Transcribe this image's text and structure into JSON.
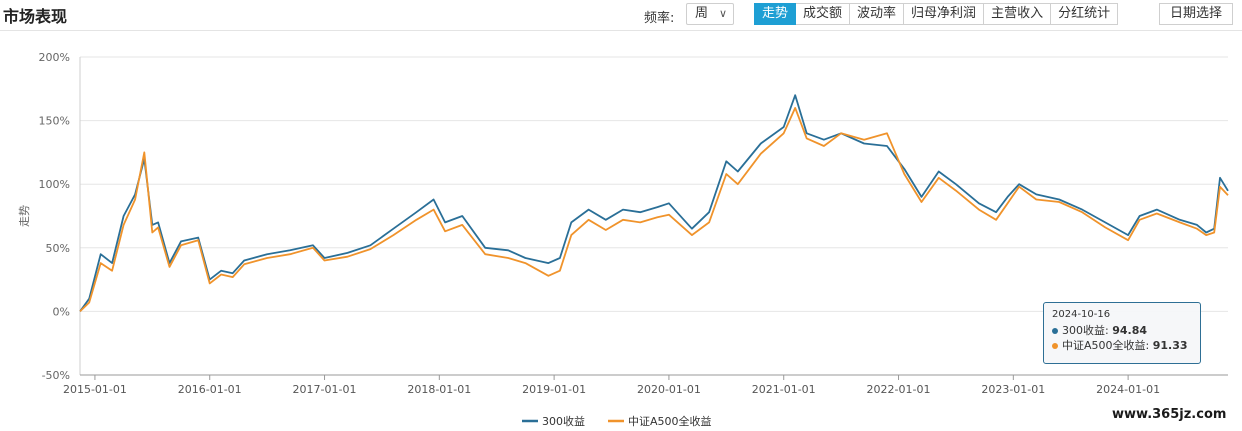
{
  "header": {
    "title": "市场表现",
    "freq_label": "频率:",
    "freq_value": "周",
    "tabs": [
      "走势",
      "成交额",
      "波动率",
      "归母净利润",
      "主营收入",
      "分红统计"
    ],
    "active_tab": 0,
    "date_button": "日期选择"
  },
  "chart_data": {
    "type": "line",
    "ylabel": "走势",
    "y_ticks": [
      "200%",
      "150%",
      "100%",
      "50%",
      "0%",
      "-50%"
    ],
    "y_values": [
      200,
      150,
      100,
      50,
      0,
      -50
    ],
    "ylim": [
      -50,
      200
    ],
    "x_tick_labels": [
      "2015-01-01",
      "2016-01-01",
      "2017-01-01",
      "2018-01-01",
      "2019-01-01",
      "2020-01-01",
      "2021-01-01",
      "2022-01-01",
      "2023-01-01",
      "2024-01-01"
    ],
    "x_ticks": [
      2015.0,
      2016.0,
      2017.0,
      2018.0,
      2019.0,
      2020.0,
      2021.0,
      2022.0,
      2023.0,
      2024.0
    ],
    "xlim": [
      2014.87,
      2024.87
    ],
    "grid": true,
    "legend_position": "bottom-center",
    "colors": [
      "#2a6f97",
      "#f0932b"
    ],
    "series": [
      {
        "name": "300收益",
        "x": [
          2014.87,
          2014.95,
          2015.05,
          2015.15,
          2015.25,
          2015.35,
          2015.43,
          2015.5,
          2015.55,
          2015.65,
          2015.75,
          2015.9,
          2016.0,
          2016.1,
          2016.2,
          2016.3,
          2016.5,
          2016.7,
          2016.9,
          2017.0,
          2017.2,
          2017.4,
          2017.6,
          2017.8,
          2017.95,
          2018.05,
          2018.2,
          2018.4,
          2018.6,
          2018.75,
          2018.95,
          2019.05,
          2019.15,
          2019.3,
          2019.45,
          2019.6,
          2019.75,
          2019.9,
          2020.0,
          2020.2,
          2020.35,
          2020.5,
          2020.6,
          2020.8,
          2021.0,
          2021.1,
          2021.2,
          2021.35,
          2021.5,
          2021.7,
          2021.9,
          2022.05,
          2022.2,
          2022.35,
          2022.5,
          2022.7,
          2022.85,
          2022.95,
          2023.05,
          2023.2,
          2023.4,
          2023.6,
          2023.8,
          2024.0,
          2024.1,
          2024.25,
          2024.45,
          2024.6,
          2024.68,
          2024.75,
          2024.8,
          2024.87
        ],
        "values": [
          0,
          10,
          45,
          38,
          75,
          92,
          120,
          68,
          70,
          38,
          55,
          58,
          25,
          32,
          30,
          40,
          45,
          48,
          52,
          42,
          46,
          52,
          65,
          78,
          88,
          70,
          75,
          50,
          48,
          42,
          38,
          42,
          70,
          80,
          72,
          80,
          78,
          82,
          85,
          65,
          78,
          118,
          110,
          132,
          145,
          170,
          140,
          135,
          140,
          132,
          130,
          112,
          90,
          110,
          100,
          85,
          78,
          90,
          100,
          92,
          88,
          80,
          70,
          60,
          75,
          80,
          72,
          68,
          62,
          65,
          105,
          94.84
        ]
      },
      {
        "name": "中证A500全收益",
        "x": [
          2014.87,
          2014.95,
          2015.05,
          2015.15,
          2015.25,
          2015.35,
          2015.43,
          2015.5,
          2015.55,
          2015.65,
          2015.75,
          2015.9,
          2016.0,
          2016.1,
          2016.2,
          2016.3,
          2016.5,
          2016.7,
          2016.9,
          2017.0,
          2017.2,
          2017.4,
          2017.6,
          2017.8,
          2017.95,
          2018.05,
          2018.2,
          2018.4,
          2018.6,
          2018.75,
          2018.95,
          2019.05,
          2019.15,
          2019.3,
          2019.45,
          2019.6,
          2019.75,
          2019.9,
          2020.0,
          2020.2,
          2020.35,
          2020.5,
          2020.6,
          2020.8,
          2021.0,
          2021.1,
          2021.2,
          2021.35,
          2021.5,
          2021.7,
          2021.9,
          2022.05,
          2022.2,
          2022.35,
          2022.5,
          2022.7,
          2022.85,
          2022.95,
          2023.05,
          2023.2,
          2023.4,
          2023.6,
          2023.8,
          2024.0,
          2024.1,
          2024.25,
          2024.45,
          2024.6,
          2024.68,
          2024.75,
          2024.8,
          2024.87
        ],
        "values": [
          0,
          7,
          38,
          32,
          68,
          88,
          125,
          62,
          66,
          35,
          52,
          56,
          22,
          29,
          27,
          37,
          42,
          45,
          50,
          40,
          43,
          49,
          60,
          72,
          80,
          63,
          68,
          45,
          42,
          38,
          28,
          32,
          60,
          72,
          64,
          72,
          70,
          74,
          76,
          60,
          70,
          108,
          100,
          124,
          140,
          160,
          136,
          130,
          140,
          135,
          140,
          108,
          86,
          105,
          95,
          80,
          72,
          85,
          98,
          88,
          86,
          78,
          66,
          56,
          72,
          77,
          70,
          65,
          60,
          62,
          98,
          91.33
        ]
      }
    ],
    "tooltip": {
      "date": "2024-10-16",
      "rows": [
        {
          "label": "300收益:",
          "value": "94.84"
        },
        {
          "label": "中证A500全收益:",
          "value": "91.33"
        }
      ]
    }
  },
  "watermark": "www.365jz.com"
}
